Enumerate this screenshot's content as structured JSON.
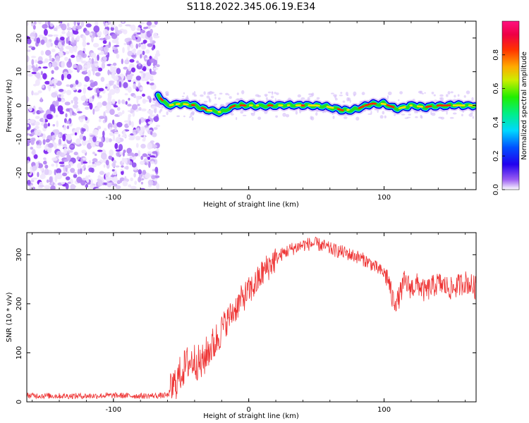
{
  "title": "S118.2022.345.06.19.E34",
  "colors": {
    "snr_line": "#ee3333",
    "noise": "#7a1ef0",
    "ridge_core": "#ff2200",
    "ridge_mid": "#22dd22",
    "ridge_edge": "#0000dd"
  },
  "chart_data": [
    {
      "type": "heatmap",
      "name": "spectrogram",
      "xlabel": "Height of straight line (km)",
      "ylabel": "Frequency (Hz)",
      "xlim": [
        -164,
        168
      ],
      "ylim": [
        -25,
        25
      ],
      "xticks": [
        -100,
        0,
        100
      ],
      "yticks": [
        -20,
        -10,
        0,
        10,
        20
      ],
      "grid": false,
      "noise_region_x": [
        -164,
        -67
      ],
      "ridge": {
        "x": [
          -67,
          -60,
          -50,
          -40,
          -30,
          -20,
          -10,
          0,
          10,
          20,
          30,
          40,
          50,
          60,
          70,
          80,
          90,
          100,
          110,
          120,
          130,
          140,
          150,
          160,
          168
        ],
        "y": [
          3,
          0,
          0.5,
          0,
          -1.5,
          -2,
          0,
          0,
          0,
          0,
          0,
          0,
          0,
          -0.5,
          -1.5,
          -1,
          0.5,
          0.5,
          -1,
          0,
          -0.5,
          0,
          0,
          0,
          0
        ]
      },
      "colorbar": {
        "label": "Normalized spectral amplitude",
        "range": [
          0,
          1
        ],
        "ticks": [
          0.0,
          0.2,
          0.4,
          0.6,
          0.8
        ]
      }
    },
    {
      "type": "line",
      "name": "snr",
      "xlabel": "Height of straight line (km)",
      "ylabel": "SNR (10 * v/v)",
      "xlim": [
        -164,
        168
      ],
      "ylim": [
        0,
        345
      ],
      "xticks": [
        -100,
        0,
        100
      ],
      "yticks": [
        0,
        100,
        200,
        300
      ],
      "grid": false,
      "series": [
        {
          "x": [
            -164,
            -140,
            -120,
            -100,
            -80,
            -60,
            -55,
            -50,
            -45,
            -40,
            -35,
            -30,
            -25,
            -20,
            -15,
            -10,
            -5,
            0,
            5,
            10,
            15,
            20,
            25,
            30,
            35,
            40,
            45,
            50,
            55,
            60,
            65,
            70,
            75,
            80,
            85,
            90,
            95,
            100,
            103,
            106,
            110,
            115,
            120,
            125,
            130,
            140,
            150,
            160,
            168
          ],
          "values": [
            13,
            12,
            12,
            13,
            12,
            13,
            35,
            60,
            80,
            85,
            75,
            105,
            120,
            150,
            170,
            190,
            210,
            225,
            240,
            262,
            278,
            292,
            302,
            310,
            315,
            320,
            322,
            322,
            318,
            312,
            308,
            305,
            300,
            296,
            290,
            282,
            272,
            262,
            252,
            210,
            205,
            245,
            232,
            240,
            225,
            242,
            230,
            245,
            232
          ]
        }
      ]
    }
  ]
}
